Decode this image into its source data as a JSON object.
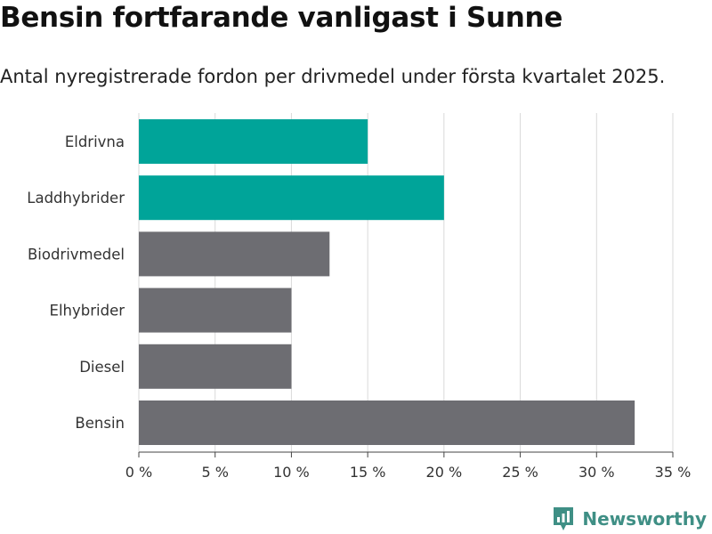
{
  "title": "Bensin fortfarande vanligast i Sunne",
  "subtitle": "Antal nyregistrerade fordon per drivmedel under första kvartalet 2025.",
  "brand": {
    "name": "Newsworthy",
    "icon": "newsworthy-logo-icon",
    "color": "#3f8f85"
  },
  "colors": {
    "highlight": "#00a499",
    "default": "#6d6d72",
    "grid": "#d9d9d9"
  },
  "chart_data": {
    "type": "bar",
    "orientation": "horizontal",
    "categories": [
      "Eldrivna",
      "Laddhybrider",
      "Biodrivmedel",
      "Elhybrider",
      "Diesel",
      "Bensin"
    ],
    "values": [
      15,
      20,
      12.5,
      10,
      10,
      32.5
    ],
    "highlight": [
      true,
      true,
      false,
      false,
      false,
      false
    ],
    "xlim": [
      0,
      35
    ],
    "xticks": [
      0,
      5,
      10,
      15,
      20,
      25,
      30,
      35
    ],
    "tick_labels": [
      "0 %",
      "5 %",
      "10 %",
      "15 %",
      "20 %",
      "25 %",
      "30 %",
      "35 %"
    ],
    "grid": true,
    "xlabel": "",
    "ylabel": ""
  }
}
